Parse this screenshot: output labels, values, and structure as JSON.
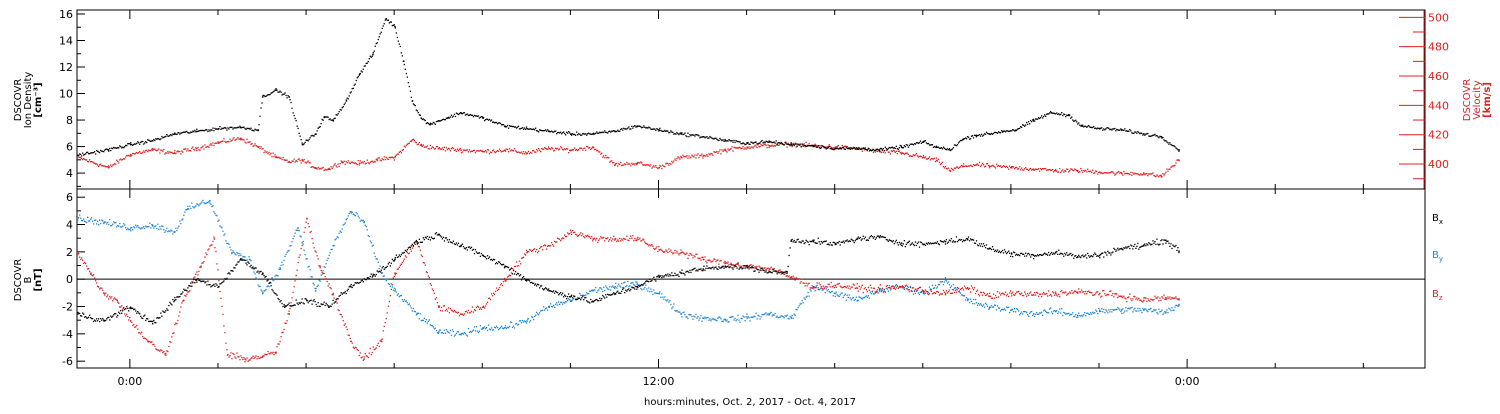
{
  "chart_data": {
    "type": "scatter",
    "xlabel": "hours:minutes, Oct.  2, 2017 - Oct.  4, 2017",
    "x_tick_labels": [
      "0:00",
      "12:00",
      "0:00"
    ],
    "x_units": "hours since Oct. 2, 2017 0:00",
    "xlim": [
      -1.2,
      29.4
    ],
    "panels": [
      {
        "id": "density-velocity",
        "left_ylabel": [
          "DSCOVR",
          "Ion Density",
          "[cm⁻³]"
        ],
        "right_ylabel": [
          "DSCOVR",
          "Velocity",
          "[km/s]"
        ],
        "ylim_left": [
          2.8,
          16.3
        ],
        "ylim_right": [
          383,
          505
        ],
        "yticks_left": [
          4,
          6,
          8,
          10,
          12,
          14,
          16
        ],
        "yticks_right": [
          400,
          420,
          440,
          460,
          480,
          500
        ],
        "series": [
          {
            "axis": "left",
            "color": "#000000",
            "x": [
              -1.2,
              -0.5,
              0.0,
              0.5,
              1.0,
              1.5,
              2.0,
              2.5,
              2.9,
              3.0,
              3.3,
              3.6,
              3.9,
              4.2,
              4.4,
              4.6,
              4.9,
              5.2,
              5.5,
              5.8,
              6.0,
              6.2,
              6.4,
              6.6,
              6.8,
              7.0,
              7.2,
              7.5,
              8.0,
              8.5,
              9.0,
              9.5,
              10.0,
              10.5,
              11.0,
              11.5,
              12.0,
              12.5,
              13.0,
              13.5,
              14.0,
              14.5,
              15.0,
              15.5,
              16.0,
              16.5,
              17.0,
              17.5,
              18.0,
              18.3,
              18.6,
              18.9,
              19.2,
              19.5,
              19.8,
              20.1,
              20.5,
              20.9,
              21.3,
              21.6,
              22.0,
              22.5,
              23.0,
              23.4,
              23.8
            ],
            "y": [
              5.4,
              5.8,
              6.2,
              6.5,
              7.0,
              7.2,
              7.4,
              7.5,
              7.3,
              9.8,
              10.3,
              9.8,
              6.2,
              7.0,
              8.3,
              8.0,
              9.5,
              11.5,
              13.0,
              15.7,
              15.1,
              12.5,
              9.5,
              8.2,
              7.7,
              8.0,
              8.2,
              8.6,
              8.2,
              7.6,
              7.4,
              7.2,
              7.0,
              7.0,
              7.2,
              7.6,
              7.3,
              7.0,
              6.8,
              6.5,
              6.3,
              6.4,
              6.2,
              6.1,
              5.9,
              5.9,
              5.8,
              6.0,
              6.4,
              6.0,
              5.8,
              6.6,
              6.9,
              7.0,
              7.2,
              7.3,
              8.0,
              8.6,
              8.4,
              7.6,
              7.4,
              7.3,
              7.0,
              6.8,
              5.8
            ]
          },
          {
            "axis": "right",
            "color": "#e02020",
            "x": [
              -1.2,
              -0.5,
              0.0,
              0.5,
              1.0,
              1.5,
              2.0,
              2.5,
              2.9,
              3.3,
              3.6,
              3.9,
              4.2,
              4.5,
              4.8,
              5.2,
              5.6,
              6.0,
              6.4,
              6.6,
              7.0,
              7.5,
              8.0,
              8.5,
              9.0,
              9.5,
              10.0,
              10.5,
              11.0,
              11.5,
              12.0,
              12.5,
              13.0,
              13.5,
              14.0,
              14.5,
              15.0,
              15.5,
              16.0,
              16.5,
              17.0,
              17.5,
              18.0,
              18.3,
              18.6,
              18.9,
              19.2,
              19.5,
              20.0,
              20.5,
              21.0,
              21.5,
              22.0,
              22.5,
              23.0,
              23.4,
              23.8
            ],
            "y": [
              405,
              398,
              407,
              410,
              408,
              411,
              415,
              418,
              412,
              405,
              402,
              403,
              398,
              397,
              402,
              401,
              403,
              405,
              417,
              413,
              411,
              410,
              409,
              410,
              408,
              411,
              410,
              412,
              400,
              401,
              398,
              405,
              406,
              410,
              412,
              413,
              414,
              413,
              412,
              411,
              409,
              408,
              405,
              403,
              396,
              399,
              400,
              399,
              398,
              397,
              396,
              396,
              395,
              394,
              394,
              392,
              403
            ]
          }
        ]
      },
      {
        "id": "magnetic-field",
        "left_ylabel": [
          "DSCOVR",
          "B",
          "[nT]"
        ],
        "ylim": [
          -6.5,
          6.6
        ],
        "yticks": [
          -6,
          -4,
          -2,
          0,
          2,
          4,
          6
        ],
        "zero_line": true,
        "legend_position": "right",
        "series": [
          {
            "name": "Bx",
            "name_main": "B",
            "name_sub": "x",
            "color": "#000000",
            "x": [
              -1.2,
              -0.6,
              0.0,
              0.5,
              1.0,
              1.5,
              2.0,
              2.5,
              3.0,
              3.5,
              4.0,
              4.5,
              5.0,
              5.5,
              6.0,
              6.5,
              7.0,
              7.5,
              8.0,
              8.5,
              9.0,
              9.5,
              10.0,
              10.5,
              11.0,
              11.5,
              12.0,
              12.5,
              13.0,
              13.5,
              14.0,
              14.5,
              14.9,
              15.0,
              15.5,
              16.0,
              16.5,
              17.0,
              17.5,
              18.0,
              18.5,
              19.0,
              19.5,
              20.0,
              20.5,
              21.0,
              21.5,
              22.0,
              22.5,
              23.0,
              23.5,
              23.8
            ],
            "y": [
              -2.5,
              -3.0,
              -2.0,
              -3.2,
              -1.5,
              0.0,
              -0.5,
              1.5,
              0.5,
              -2.0,
              -1.5,
              -2.0,
              -0.5,
              0.3,
              1.5,
              2.8,
              3.3,
              2.5,
              1.8,
              1.0,
              0.0,
              -0.8,
              -1.2,
              -1.6,
              -1.0,
              -0.5,
              0.2,
              0.5,
              0.8,
              1.0,
              0.9,
              0.6,
              0.5,
              2.9,
              2.8,
              2.6,
              3.0,
              3.1,
              2.7,
              2.6,
              2.8,
              3.0,
              2.3,
              1.9,
              1.8,
              2.0,
              1.7,
              1.8,
              2.3,
              2.5,
              2.9,
              2.1
            ]
          },
          {
            "name": "By",
            "name_main": "B",
            "name_sub": "y",
            "color": "#1f86d6",
            "x": [
              -1.2,
              -0.6,
              0.0,
              0.5,
              1.0,
              1.3,
              1.8,
              2.3,
              2.7,
              3.0,
              3.4,
              3.8,
              4.2,
              4.6,
              5.0,
              5.3,
              5.7,
              6.0,
              6.5,
              7.0,
              7.5,
              8.0,
              8.5,
              9.0,
              9.5,
              10.0,
              10.5,
              11.0,
              11.5,
              12.0,
              12.5,
              13.0,
              13.5,
              14.0,
              14.5,
              15.0,
              15.5,
              16.0,
              16.5,
              17.0,
              17.5,
              18.0,
              18.5,
              19.0,
              19.5,
              20.0,
              20.5,
              21.0,
              21.5,
              22.0,
              22.5,
              23.0,
              23.5,
              23.8
            ],
            "y": [
              4.5,
              4.2,
              3.8,
              4.0,
              3.5,
              5.2,
              5.8,
              2.0,
              1.5,
              -1.0,
              0.8,
              3.8,
              -0.8,
              2.5,
              5.0,
              4.2,
              0.5,
              -0.8,
              -2.5,
              -3.8,
              -4.0,
              -3.5,
              -3.5,
              -3.0,
              -2.0,
              -1.5,
              -0.8,
              -0.5,
              -0.3,
              -1.0,
              -2.5,
              -2.8,
              -2.9,
              -2.8,
              -2.5,
              -2.8,
              -0.5,
              -1.0,
              -1.5,
              -0.8,
              -0.5,
              -1.0,
              0.0,
              -1.5,
              -2.0,
              -2.2,
              -2.5,
              -2.3,
              -2.6,
              -2.3,
              -2.2,
              -2.2,
              -2.4,
              -1.8
            ]
          },
          {
            "name": "Bz",
            "name_main": "B",
            "name_sub": "z",
            "color": "#e02020",
            "x": [
              -1.2,
              -0.9,
              -0.6,
              -0.3,
              0.0,
              0.4,
              0.8,
              1.2,
              1.6,
              1.9,
              2.2,
              2.6,
              3.0,
              3.3,
              3.6,
              4.0,
              4.3,
              4.6,
              5.0,
              5.3,
              5.7,
              6.0,
              6.5,
              7.0,
              7.5,
              8.0,
              8.5,
              9.0,
              9.5,
              10.0,
              10.5,
              11.0,
              11.5,
              12.0,
              12.5,
              13.0,
              13.5,
              14.0,
              14.5,
              15.0,
              15.5,
              16.0,
              16.5,
              17.0,
              17.5,
              18.0,
              18.5,
              19.0,
              19.5,
              20.0,
              20.5,
              21.0,
              21.5,
              22.0,
              22.5,
              23.0,
              23.5,
              23.8
            ],
            "y": [
              2.0,
              0.5,
              -1.0,
              -1.5,
              -3.0,
              -4.5,
              -5.5,
              -1.5,
              1.0,
              3.0,
              -5.5,
              -5.8,
              -5.6,
              -5.3,
              -2.5,
              4.5,
              1.0,
              -1.0,
              -4.5,
              -5.8,
              -4.5,
              0.5,
              2.8,
              -2.0,
              -2.5,
              -2.0,
              0.0,
              2.0,
              2.5,
              3.5,
              3.0,
              3.0,
              3.0,
              2.2,
              2.0,
              1.5,
              1.2,
              1.0,
              0.8,
              0.2,
              -0.5,
              -0.4,
              -0.6,
              -0.7,
              -0.5,
              -0.8,
              -1.0,
              -0.6,
              -1.2,
              -1.0,
              -1.1,
              -1.0,
              -0.9,
              -1.0,
              -1.2,
              -1.5,
              -1.3,
              -1.4
            ]
          }
        ]
      }
    ]
  }
}
